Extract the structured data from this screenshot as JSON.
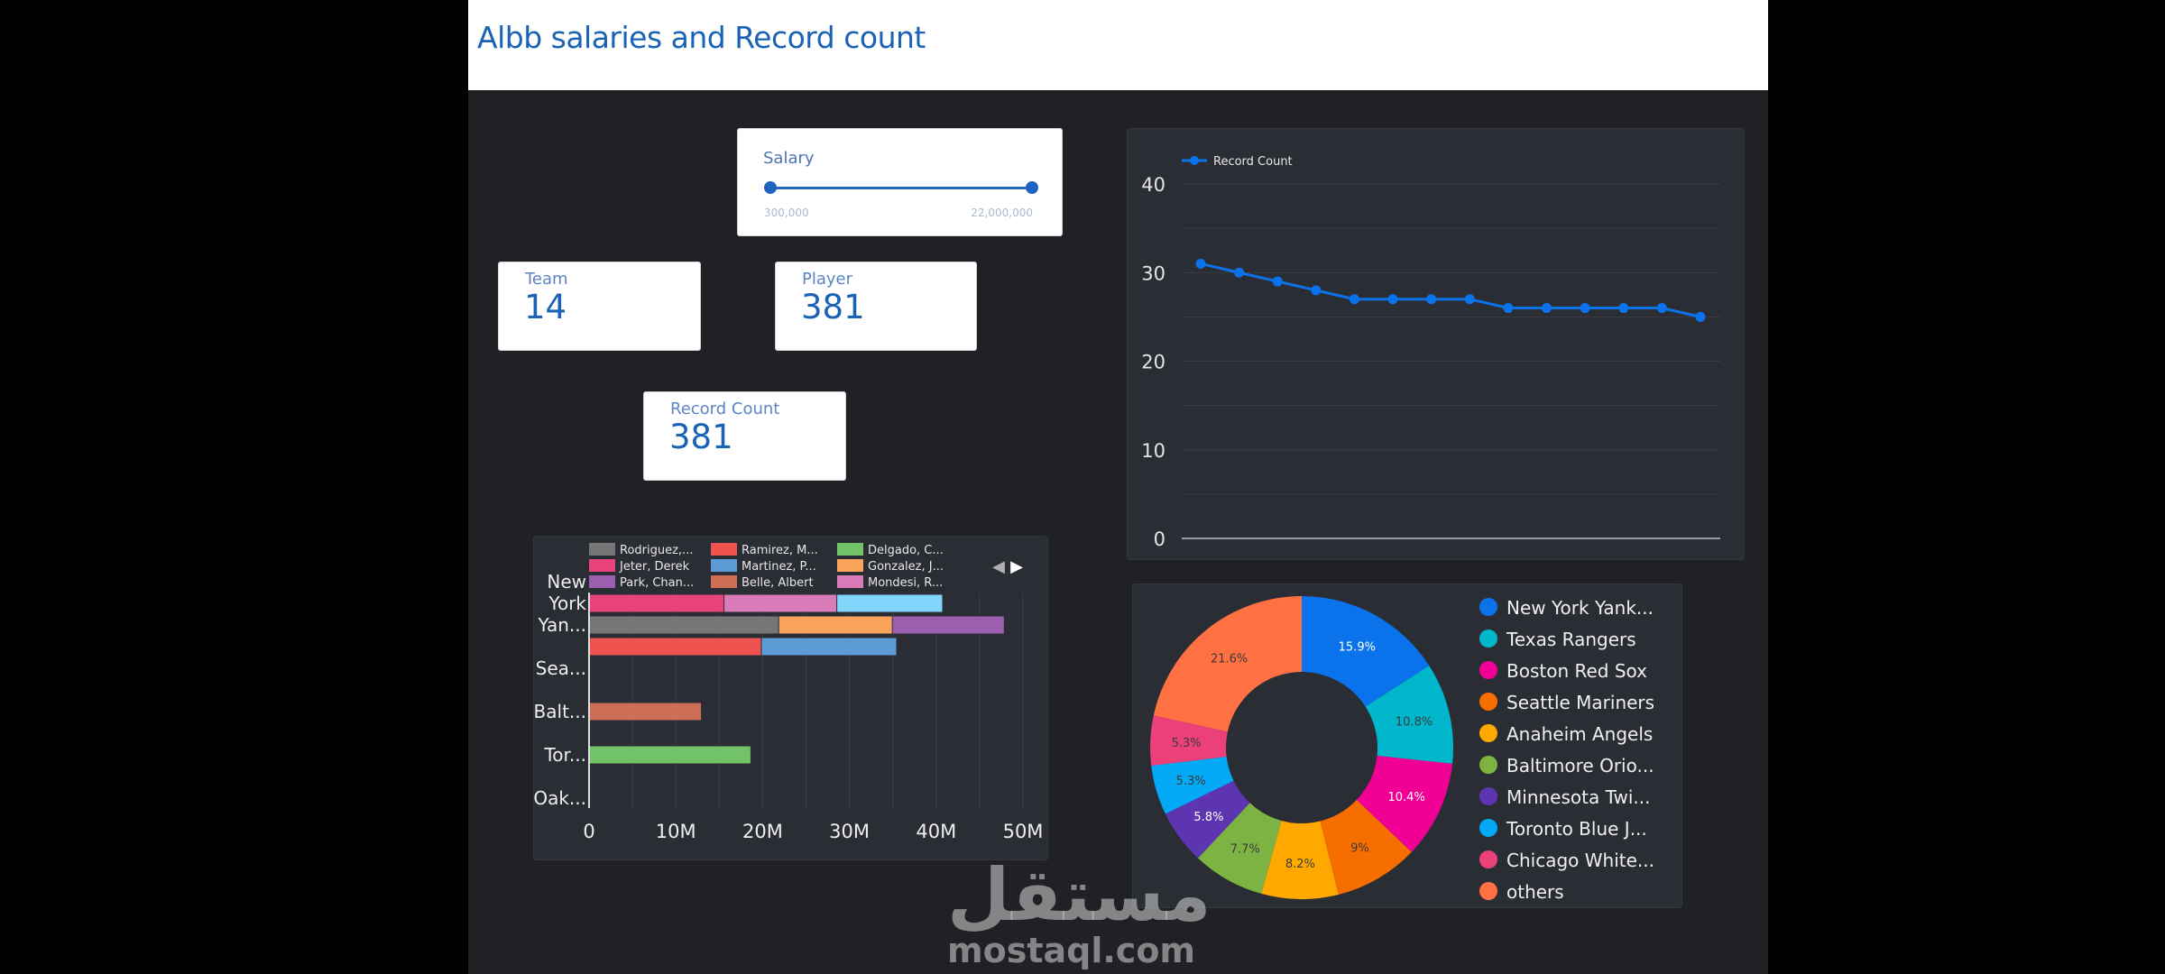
{
  "header": {
    "title": "Albb salaries and Record count"
  },
  "salary_filter": {
    "label": "Salary",
    "min_label": "300,000",
    "max_label": "22,000,000",
    "selected_min": 300000,
    "selected_max": 22000000
  },
  "scorecards": {
    "team": {
      "label": "Team",
      "value": "14"
    },
    "player": {
      "label": "Player",
      "value": "381"
    },
    "record_count": {
      "label": "Record Count",
      "value": "381"
    }
  },
  "watermark": {
    "logo_text": "مستقل",
    "domain": "mostaql.com"
  },
  "colors": {
    "accent": "#1a62b5",
    "line": "#0a73eb",
    "panel": "#2b2d35",
    "background": "#202124"
  },
  "chart_data": [
    {
      "type": "line",
      "series": [
        {
          "name": "Record Count",
          "values": [
            31,
            30,
            29,
            28,
            27,
            27,
            27,
            27,
            26,
            26,
            26,
            26,
            26,
            25
          ],
          "color": "#0a73eb"
        }
      ],
      "ylim": [
        0,
        40
      ],
      "yticks": [
        "0",
        "10",
        "20",
        "30",
        "40"
      ],
      "grid": true,
      "legend": "top-left"
    },
    {
      "type": "bar",
      "orientation": "horizontal",
      "stacked": true,
      "xlim": [
        0,
        50
      ],
      "xticks": [
        "0",
        "10M",
        "20M",
        "30M",
        "40M",
        "50M"
      ],
      "ytick_labels": [
        {
          "row": -1,
          "text": "New"
        },
        {
          "row": 0,
          "text": "York"
        },
        {
          "row": 1,
          "text": "Yan..."
        },
        {
          "row": 3,
          "text": "Sea..."
        },
        {
          "row": 5,
          "text": "Balt..."
        },
        {
          "row": 7,
          "text": "Tor..."
        },
        {
          "row": 9,
          "text": "Oak..."
        }
      ],
      "legend": "top",
      "legend_items": [
        {
          "name": "Rodriguez,...",
          "color": "#767676"
        },
        {
          "name": "Ramirez, M...",
          "color": "#ef5350"
        },
        {
          "name": "Delgado, C...",
          "color": "#72c267"
        },
        {
          "name": "Jeter, Derek",
          "color": "#e8437a"
        },
        {
          "name": "Martinez, P...",
          "color": "#5c9bd6"
        },
        {
          "name": "Gonzalez, J...",
          "color": "#f9a35b"
        },
        {
          "name": "Park, Chan...",
          "color": "#9c5fb0"
        },
        {
          "name": "Belle, Albert",
          "color": "#cf6e57"
        },
        {
          "name": "Mondesi, R...",
          "color": "#d97bb8"
        }
      ],
      "rows": [
        {
          "segments": [
            {
              "player": "Jeter, Derek",
              "value": 15.6,
              "color": "#e8437a"
            },
            {
              "player": "Mondesi, R...",
              "value": 13.0,
              "color": "#d97bb8"
            },
            {
              "player": "",
              "value": 12.2,
              "color": "#81d4fa"
            }
          ]
        },
        {
          "segments": [
            {
              "player": "Rodriguez,...",
              "value": 21.9,
              "color": "#767676"
            },
            {
              "player": "Gonzalez, J...",
              "value": 13.1,
              "color": "#f9a35b"
            },
            {
              "player": "Park, Chan...",
              "value": 12.9,
              "color": "#9c5fb0"
            }
          ]
        },
        {
          "segments": [
            {
              "player": "Ramirez, M...",
              "value": 19.9,
              "color": "#ef5350"
            },
            {
              "player": "Martinez, P...",
              "value": 15.6,
              "color": "#5c9bd6"
            }
          ]
        },
        {
          "segments": []
        },
        {
          "segments": []
        },
        {
          "segments": [
            {
              "player": "Belle, Albert",
              "value": 13.0,
              "color": "#cf6e57"
            }
          ]
        },
        {
          "segments": []
        },
        {
          "segments": [
            {
              "player": "Delgado, C...",
              "value": 18.7,
              "color": "#72c267"
            }
          ]
        },
        {
          "segments": []
        },
        {
          "segments": []
        }
      ],
      "pager": {
        "prev": "◀",
        "next": "▶"
      }
    },
    {
      "type": "pie",
      "donut": true,
      "legend": "right",
      "slices": [
        {
          "label": "New York Yank...",
          "value": 15.9,
          "text": "15.9%",
          "color": "#0a73eb"
        },
        {
          "label": "Texas Rangers",
          "value": 10.8,
          "text": "10.8%",
          "color": "#00b6cb"
        },
        {
          "label": "Boston Red Sox",
          "value": 10.4,
          "text": "10.4%",
          "color": "#f10096"
        },
        {
          "label": "Seattle Mariners",
          "value": 9.0,
          "text": "9%",
          "color": "#f66d00"
        },
        {
          "label": "Anaheim Angels",
          "value": 8.2,
          "text": "8.2%",
          "color": "#ffa800"
        },
        {
          "label": "Baltimore Orio...",
          "value": 7.7,
          "text": "7.7%",
          "color": "#7cb342"
        },
        {
          "label": "Minnesota Twi...",
          "value": 5.8,
          "text": "5.8%",
          "color": "#5e35b1"
        },
        {
          "label": "Toronto Blue J...",
          "value": 5.3,
          "text": "5.3%",
          "color": "#03a9f4"
        },
        {
          "label": "Chicago White...",
          "value": 5.3,
          "text": "5.3%",
          "color": "#ec407a"
        },
        {
          "label": "others",
          "value": 21.6,
          "text": "21.6%",
          "color": "#ff7043"
        }
      ]
    }
  ]
}
